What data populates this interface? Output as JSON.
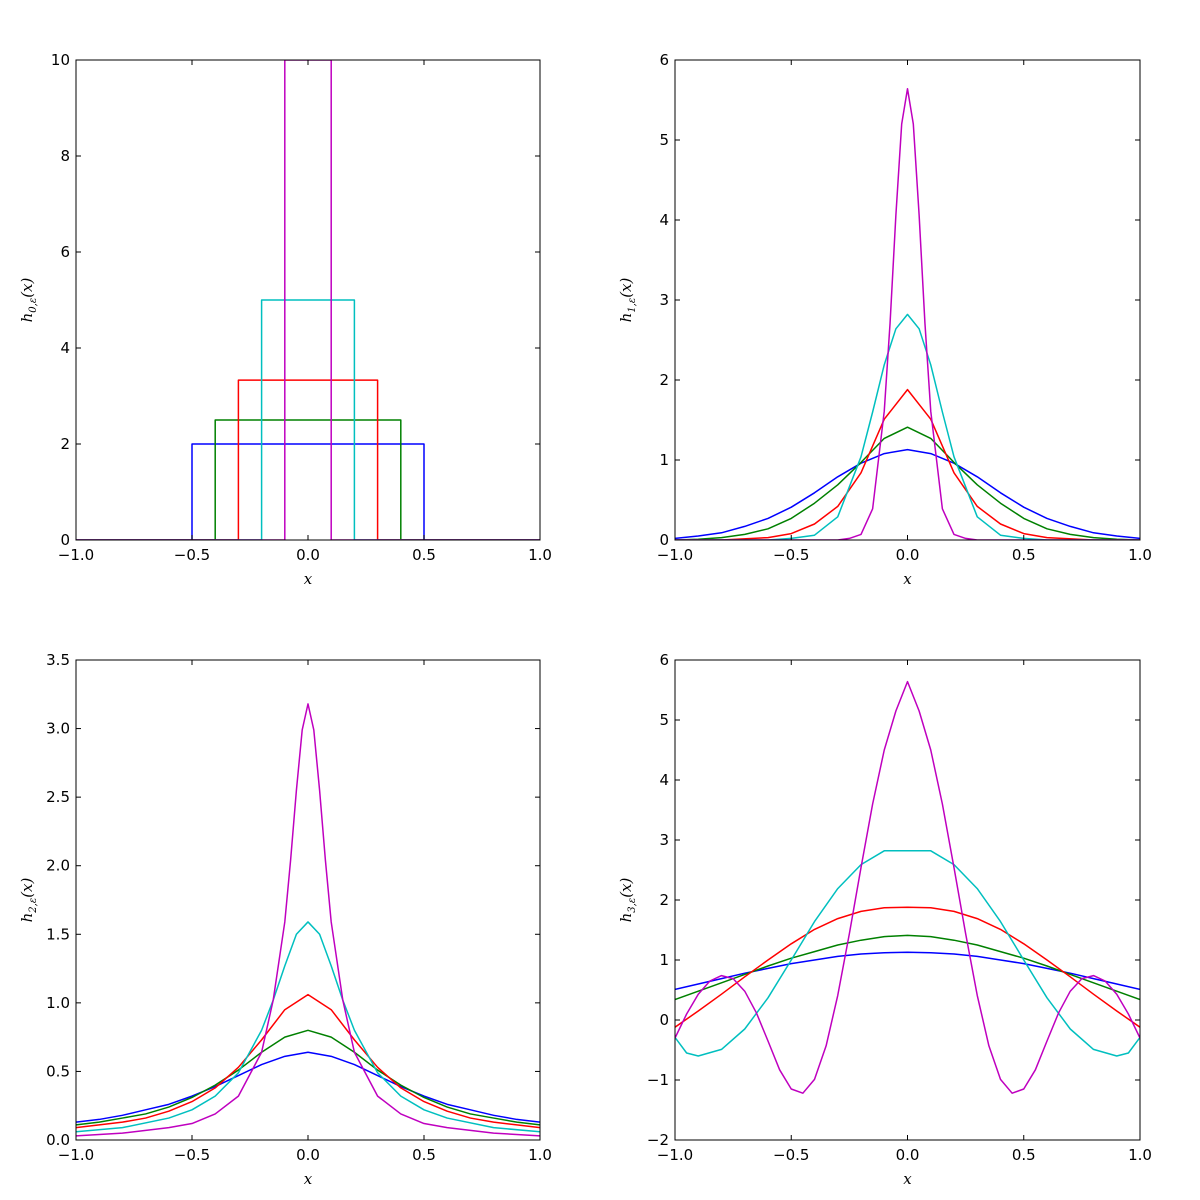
{
  "chart_data": [
    {
      "type": "line",
      "xlabel": "x",
      "ylabel": {
        "base": "h",
        "sub": "0,ε",
        "arg": "(x)"
      },
      "xlim": [
        -1.0,
        1.0
      ],
      "ylim": [
        0,
        10
      ],
      "xticks": [
        "−1.0",
        "−0.5",
        "0.0",
        "0.5",
        "1.0"
      ],
      "yticks": [
        "0",
        "2",
        "4",
        "6",
        "8",
        "10"
      ],
      "grid": false,
      "series": [
        {
          "color": "#0000ff",
          "x": [
            -1.0,
            -0.5,
            -0.5,
            0.5,
            0.5,
            1.0
          ],
          "y": [
            0,
            0,
            2.0,
            2.0,
            0,
            0
          ]
        },
        {
          "color": "#008000",
          "x": [
            -1.0,
            -0.4,
            -0.4,
            0.4,
            0.4,
            1.0
          ],
          "y": [
            0,
            0,
            2.5,
            2.5,
            0,
            0
          ]
        },
        {
          "color": "#ff0000",
          "x": [
            -1.0,
            -0.3,
            -0.3,
            0.3,
            0.3,
            1.0
          ],
          "y": [
            0,
            0,
            3.33,
            3.33,
            0,
            0
          ]
        },
        {
          "color": "#00bfbf",
          "x": [
            -1.0,
            -0.2,
            -0.2,
            0.2,
            0.2,
            1.0
          ],
          "y": [
            0,
            0,
            5.0,
            5.0,
            0,
            0
          ]
        },
        {
          "color": "#bf00bf",
          "x": [
            -1.0,
            -0.1,
            -0.1,
            0.1,
            0.1,
            1.0
          ],
          "y": [
            0,
            0,
            10.0,
            10.0,
            0,
            0
          ]
        }
      ]
    },
    {
      "type": "line",
      "xlabel": "x",
      "ylabel": {
        "base": "h",
        "sub": "1,ε",
        "arg": "(x)"
      },
      "xlim": [
        -1.0,
        1.0
      ],
      "ylim": [
        0,
        6
      ],
      "xticks": [
        "−1.0",
        "−0.5",
        "0.0",
        "0.5",
        "1.0"
      ],
      "yticks": [
        "0",
        "1",
        "2",
        "3",
        "4",
        "5",
        "6"
      ],
      "grid": false,
      "series": [
        {
          "color": "#0000ff",
          "x": [
            -1.0,
            -0.9,
            -0.8,
            -0.7,
            -0.6,
            -0.5,
            -0.4,
            -0.3,
            -0.2,
            -0.1,
            0.0,
            0.1,
            0.2,
            0.3,
            0.4,
            0.5,
            0.6,
            0.7,
            0.8,
            0.9,
            1.0
          ],
          "y": [
            0.02,
            0.05,
            0.09,
            0.17,
            0.27,
            0.41,
            0.59,
            0.79,
            0.96,
            1.08,
            1.13,
            1.08,
            0.96,
            0.79,
            0.59,
            0.41,
            0.27,
            0.17,
            0.09,
            0.05,
            0.02
          ]
        },
        {
          "color": "#008000",
          "x": [
            -1.0,
            -0.9,
            -0.8,
            -0.7,
            -0.6,
            -0.5,
            -0.4,
            -0.3,
            -0.2,
            -0.1,
            0.0,
            0.1,
            0.2,
            0.3,
            0.4,
            0.5,
            0.6,
            0.7,
            0.8,
            0.9,
            1.0
          ],
          "y": [
            0.0,
            0.01,
            0.03,
            0.07,
            0.14,
            0.27,
            0.46,
            0.69,
            0.97,
            1.27,
            1.41,
            1.27,
            0.97,
            0.69,
            0.46,
            0.27,
            0.14,
            0.07,
            0.03,
            0.01,
            0.0
          ]
        },
        {
          "color": "#ff0000",
          "x": [
            -1.0,
            -0.8,
            -0.6,
            -0.5,
            -0.4,
            -0.3,
            -0.2,
            -0.1,
            0.0,
            0.1,
            0.2,
            0.3,
            0.4,
            0.5,
            0.6,
            0.8,
            1.0
          ],
          "y": [
            0.0,
            0.0,
            0.03,
            0.08,
            0.2,
            0.42,
            0.84,
            1.51,
            1.88,
            1.51,
            0.84,
            0.42,
            0.2,
            0.08,
            0.03,
            0.0,
            0.0
          ]
        },
        {
          "color": "#00bfbf",
          "x": [
            -1.0,
            -0.6,
            -0.5,
            -0.4,
            -0.3,
            -0.2,
            -0.15,
            -0.1,
            -0.05,
            0.0,
            0.05,
            0.1,
            0.15,
            0.2,
            0.3,
            0.4,
            0.5,
            0.6,
            1.0
          ],
          "y": [
            0.0,
            0.0,
            0.02,
            0.06,
            0.29,
            1.04,
            1.6,
            2.19,
            2.64,
            2.82,
            2.64,
            2.19,
            1.6,
            1.04,
            0.29,
            0.06,
            0.02,
            0.0,
            0.0
          ]
        },
        {
          "color": "#bf00bf",
          "x": [
            -1.0,
            -0.3,
            -0.25,
            -0.2,
            -0.15,
            -0.1,
            -0.075,
            -0.05,
            -0.025,
            0.0,
            0.025,
            0.05,
            0.075,
            0.1,
            0.15,
            0.2,
            0.25,
            0.3,
            1.0
          ],
          "y": [
            0.0,
            0.0,
            0.02,
            0.07,
            0.39,
            1.61,
            2.71,
            4.06,
            5.2,
            5.64,
            5.2,
            4.06,
            2.71,
            1.61,
            0.39,
            0.07,
            0.02,
            0.0,
            0.0
          ]
        }
      ]
    },
    {
      "type": "line",
      "xlabel": "x",
      "ylabel": {
        "base": "h",
        "sub": "2,ε",
        "arg": "(x)"
      },
      "xlim": [
        -1.0,
        1.0
      ],
      "ylim": [
        0,
        3.5
      ],
      "xticks": [
        "−1.0",
        "−0.5",
        "0.0",
        "0.5",
        "1.0"
      ],
      "yticks": [
        "0.0",
        "0.5",
        "1.0",
        "1.5",
        "2.0",
        "2.5",
        "3.0",
        "3.5"
      ],
      "grid": false,
      "series": [
        {
          "color": "#0000ff",
          "x": [
            -1.0,
            -0.9,
            -0.8,
            -0.7,
            -0.6,
            -0.5,
            -0.4,
            -0.3,
            -0.2,
            -0.1,
            0.0,
            0.1,
            0.2,
            0.3,
            0.4,
            0.5,
            0.6,
            0.7,
            0.8,
            0.9,
            1.0
          ],
          "y": [
            0.13,
            0.15,
            0.18,
            0.22,
            0.26,
            0.32,
            0.39,
            0.47,
            0.55,
            0.61,
            0.64,
            0.61,
            0.55,
            0.47,
            0.39,
            0.32,
            0.26,
            0.22,
            0.18,
            0.15,
            0.13
          ]
        },
        {
          "color": "#008000",
          "x": [
            -1.0,
            -0.9,
            -0.8,
            -0.7,
            -0.6,
            -0.5,
            -0.4,
            -0.3,
            -0.2,
            -0.1,
            0.0,
            0.1,
            0.2,
            0.3,
            0.4,
            0.5,
            0.6,
            0.7,
            0.8,
            0.9,
            1.0
          ],
          "y": [
            0.11,
            0.13,
            0.16,
            0.19,
            0.24,
            0.31,
            0.4,
            0.51,
            0.64,
            0.75,
            0.8,
            0.75,
            0.64,
            0.51,
            0.4,
            0.31,
            0.24,
            0.19,
            0.16,
            0.13,
            0.11
          ]
        },
        {
          "color": "#ff0000",
          "x": [
            -1.0,
            -0.9,
            -0.8,
            -0.7,
            -0.6,
            -0.5,
            -0.4,
            -0.3,
            -0.2,
            -0.1,
            0.0,
            0.1,
            0.2,
            0.3,
            0.4,
            0.5,
            0.6,
            0.7,
            0.8,
            0.9,
            1.0
          ],
          "y": [
            0.09,
            0.11,
            0.13,
            0.16,
            0.21,
            0.28,
            0.38,
            0.53,
            0.73,
            0.95,
            1.06,
            0.95,
            0.73,
            0.53,
            0.38,
            0.28,
            0.21,
            0.16,
            0.13,
            0.11,
            0.09
          ]
        },
        {
          "color": "#00bfbf",
          "x": [
            -1.0,
            -0.8,
            -0.6,
            -0.5,
            -0.4,
            -0.3,
            -0.2,
            -0.15,
            -0.1,
            -0.05,
            0.0,
            0.05,
            0.1,
            0.15,
            0.2,
            0.3,
            0.4,
            0.5,
            0.6,
            0.8,
            1.0
          ],
          "y": [
            0.06,
            0.09,
            0.16,
            0.22,
            0.32,
            0.49,
            0.8,
            1.02,
            1.27,
            1.5,
            1.59,
            1.5,
            1.27,
            1.02,
            0.8,
            0.49,
            0.32,
            0.22,
            0.16,
            0.09,
            0.06
          ]
        },
        {
          "color": "#bf00bf",
          "x": [
            -1.0,
            -0.8,
            -0.6,
            -0.5,
            -0.4,
            -0.3,
            -0.2,
            -0.15,
            -0.1,
            -0.075,
            -0.05,
            -0.025,
            0.0,
            0.025,
            0.05,
            0.075,
            0.1,
            0.15,
            0.2,
            0.3,
            0.4,
            0.5,
            0.6,
            0.8,
            1.0
          ],
          "y": [
            0.03,
            0.05,
            0.09,
            0.12,
            0.19,
            0.32,
            0.64,
            1.02,
            1.59,
            2.04,
            2.55,
            2.99,
            3.18,
            2.99,
            2.55,
            2.04,
            1.59,
            1.02,
            0.64,
            0.32,
            0.19,
            0.12,
            0.09,
            0.05,
            0.03
          ]
        }
      ]
    },
    {
      "type": "line",
      "xlabel": "x",
      "ylabel": {
        "base": "h",
        "sub": "3,ε",
        "arg": "(x)"
      },
      "xlim": [
        -1.0,
        1.0
      ],
      "ylim": [
        -2,
        6
      ],
      "xticks": [
        "−1.0",
        "−0.5",
        "0.0",
        "0.5",
        "1.0"
      ],
      "yticks": [
        "−2",
        "−1",
        "0",
        "1",
        "2",
        "3",
        "4",
        "5",
        "6"
      ],
      "grid": false,
      "series": [
        {
          "color": "#0000ff",
          "x": [
            -1.0,
            -0.9,
            -0.8,
            -0.7,
            -0.6,
            -0.5,
            -0.4,
            -0.3,
            -0.2,
            -0.1,
            0.0,
            0.1,
            0.2,
            0.3,
            0.4,
            0.5,
            0.6,
            0.7,
            0.8,
            0.9,
            1.0
          ],
          "y": [
            0.51,
            0.6,
            0.69,
            0.78,
            0.86,
            0.94,
            1.0,
            1.06,
            1.1,
            1.12,
            1.13,
            1.12,
            1.1,
            1.06,
            1.0,
            0.94,
            0.86,
            0.78,
            0.69,
            0.6,
            0.51
          ]
        },
        {
          "color": "#008000",
          "x": [
            -1.0,
            -0.9,
            -0.8,
            -0.7,
            -0.6,
            -0.5,
            -0.4,
            -0.3,
            -0.2,
            -0.1,
            0.0,
            0.1,
            0.2,
            0.3,
            0.4,
            0.5,
            0.6,
            0.7,
            0.8,
            0.9,
            1.0
          ],
          "y": [
            0.34,
            0.48,
            0.62,
            0.76,
            0.9,
            1.03,
            1.14,
            1.25,
            1.33,
            1.39,
            1.41,
            1.39,
            1.33,
            1.25,
            1.14,
            1.03,
            0.9,
            0.76,
            0.62,
            0.48,
            0.34
          ]
        },
        {
          "color": "#ff0000",
          "x": [
            -1.0,
            -0.9,
            -0.8,
            -0.7,
            -0.6,
            -0.5,
            -0.4,
            -0.3,
            -0.2,
            -0.1,
            0.0,
            0.1,
            0.2,
            0.3,
            0.4,
            0.5,
            0.6,
            0.7,
            0.8,
            0.9,
            1.0
          ],
          "y": [
            -0.12,
            0.15,
            0.43,
            0.72,
            1.0,
            1.27,
            1.51,
            1.69,
            1.81,
            1.87,
            1.88,
            1.87,
            1.81,
            1.69,
            1.51,
            1.27,
            1.0,
            0.72,
            0.43,
            0.15,
            -0.12
          ]
        },
        {
          "color": "#00bfbf",
          "x": [
            -1.0,
            -0.95,
            -0.9,
            -0.8,
            -0.7,
            -0.6,
            -0.5,
            -0.4,
            -0.3,
            -0.2,
            -0.1,
            0.0,
            0.1,
            0.2,
            0.3,
            0.4,
            0.5,
            0.6,
            0.7,
            0.8,
            0.9,
            0.95,
            1.0
          ],
          "y": [
            -0.29,
            -0.55,
            -0.6,
            -0.49,
            -0.15,
            0.37,
            1.0,
            1.64,
            2.19,
            2.59,
            2.82,
            2.82,
            2.82,
            2.59,
            2.19,
            1.64,
            1.0,
            0.37,
            -0.15,
            -0.49,
            -0.6,
            -0.55,
            -0.29
          ]
        },
        {
          "color": "#bf00bf",
          "x": [
            -1.0,
            -0.95,
            -0.9,
            -0.85,
            -0.8,
            -0.75,
            -0.7,
            -0.65,
            -0.6,
            -0.55,
            -0.5,
            -0.45,
            -0.4,
            -0.35,
            -0.3,
            -0.25,
            -0.2,
            -0.15,
            -0.1,
            -0.05,
            0.0,
            0.05,
            0.1,
            0.15,
            0.2,
            0.25,
            0.3,
            0.35,
            0.4,
            0.45,
            0.5,
            0.55,
            0.6,
            0.65,
            0.7,
            0.75,
            0.8,
            0.85,
            0.9,
            0.95,
            1.0
          ],
          "y": [
            -0.3,
            0.1,
            0.43,
            0.65,
            0.74,
            0.69,
            0.48,
            0.12,
            -0.35,
            -0.83,
            -1.15,
            -1.22,
            -0.99,
            -0.43,
            0.41,
            1.44,
            2.54,
            3.6,
            4.5,
            5.15,
            5.64,
            5.15,
            4.5,
            3.6,
            2.54,
            1.44,
            0.41,
            -0.43,
            -0.99,
            -1.22,
            -1.15,
            -0.83,
            -0.35,
            0.12,
            0.48,
            0.69,
            0.74,
            0.65,
            0.43,
            0.1,
            -0.3
          ]
        }
      ]
    }
  ]
}
